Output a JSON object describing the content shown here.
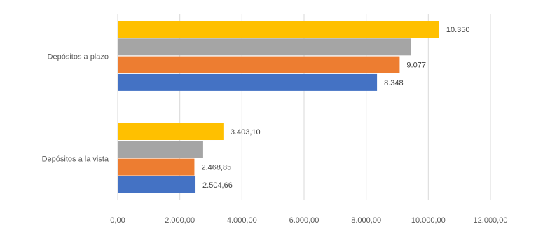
{
  "chart_data": {
    "type": "bar",
    "orientation": "horizontal",
    "categories": [
      "Depósitos a plazo",
      "Depósitos a la vista"
    ],
    "series": [
      {
        "values": [
          8348,
          2504.66
        ],
        "color": "#4472c4",
        "labels": [
          "8.348",
          "2.504,66"
        ]
      },
      {
        "values": [
          9077,
          2468.85
        ],
        "color": "#ed7d31",
        "labels": [
          "9.077",
          "2.468,85"
        ]
      },
      {
        "values": [
          9450,
          2750
        ],
        "color": "#a5a5a5",
        "labels": [
          "",
          ""
        ]
      },
      {
        "values": [
          10350,
          3403.1
        ],
        "color": "#ffc000",
        "labels": [
          "10.350",
          "3.403,10"
        ]
      }
    ],
    "xlim": [
      0,
      12000
    ],
    "ticks": [
      0,
      2000,
      4000,
      6000,
      8000,
      10000,
      12000
    ],
    "tick_labels": [
      "0,00",
      "2.000,00",
      "4.000,00",
      "6.000,00",
      "8.000,00",
      "10.000,00",
      "12.000,00"
    ],
    "grid": true,
    "legend": false
  }
}
